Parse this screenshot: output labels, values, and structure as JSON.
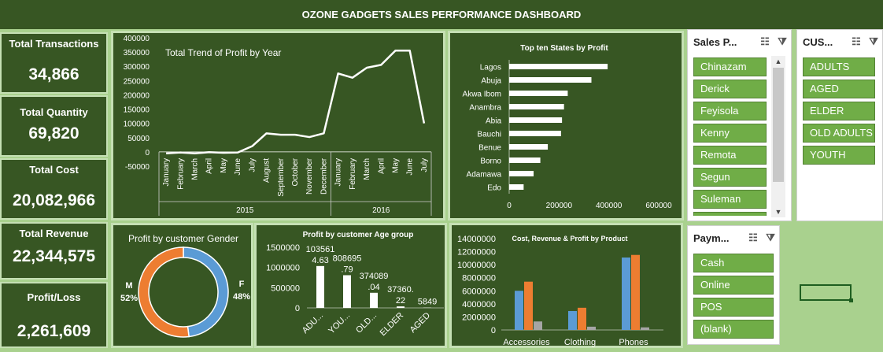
{
  "title": "OZONE GADGETS SALES PERFORMANCE DASHBOARD",
  "kpis": {
    "transactions": {
      "label": "Total Transactions",
      "value": "34,866"
    },
    "quantity": {
      "label": "Total Quantity",
      "value": "69,820"
    },
    "cost": {
      "label": "Total Cost",
      "value": "20,082,966"
    },
    "revenue": {
      "label": "Total Revenue",
      "value": "22,344,575"
    },
    "profit": {
      "label": "Profit/Loss",
      "value": "2,261,609"
    }
  },
  "slicers": {
    "sales_person": {
      "title": "Sales P...",
      "items": [
        "Chinazam",
        "Derick",
        "Feyisola",
        "Kenny",
        "Remota",
        "Segun",
        "Suleman"
      ]
    },
    "customer": {
      "title": "CUS...",
      "items": [
        "ADULTS",
        "AGED",
        "ELDER",
        "OLD ADULTS",
        "YOUTH"
      ]
    },
    "payment": {
      "title": "Paym...",
      "items": [
        "Cash",
        "Online",
        "POS",
        "(blank)"
      ]
    },
    "icons": {
      "multiselect": "multi-select-icon",
      "clear": "clear-filter-icon",
      "scroll_up": "scroll-up-icon",
      "scroll_down": "scroll-down-icon"
    }
  },
  "colors": {
    "dark_green": "#375623",
    "light_green": "#a9d18e",
    "chip_green": "#70ad47",
    "blue": "#5b9bd5",
    "orange": "#ed7d31",
    "gray": "#a5a5a5"
  },
  "chart_data": [
    {
      "id": "trend",
      "type": "line",
      "title": "Total Trend of Profit by Year",
      "years": [
        "2015",
        "2016"
      ],
      "categories": [
        "January",
        "February",
        "March",
        "April",
        "May",
        "June",
        "July",
        "August",
        "September",
        "October",
        "November",
        "December",
        "January",
        "February",
        "March",
        "April",
        "May",
        "June",
        "July"
      ],
      "year_of_category": [
        0,
        0,
        0,
        0,
        0,
        0,
        0,
        0,
        0,
        0,
        0,
        0,
        1,
        1,
        1,
        1,
        1,
        1,
        1
      ],
      "values": [
        -5000,
        -2000,
        -5000,
        -1000,
        -3000,
        -2000,
        20000,
        65000,
        60000,
        60000,
        52000,
        65000,
        275000,
        260000,
        295000,
        305000,
        355000,
        355000,
        100000
      ],
      "yticks": [
        "400000",
        "350000",
        "300000",
        "250000",
        "200000",
        "150000",
        "100000",
        "50000",
        "0",
        "-50000"
      ],
      "ylim": [
        -50000,
        400000
      ]
    },
    {
      "id": "states",
      "type": "bar",
      "title": "Top ten States by Profit",
      "categories": [
        "Lagos",
        "Abuja",
        "Akwa Ibom",
        "Anambra",
        "Abia",
        "Bauchi",
        "Benue",
        "Borno",
        "Adamawa",
        "Edo"
      ],
      "values": [
        395000,
        330000,
        235000,
        220000,
        212000,
        208000,
        155000,
        125000,
        98000,
        58000
      ],
      "xticks": [
        "0",
        "200000",
        "400000",
        "600000"
      ],
      "xlim": [
        0,
        600000
      ]
    },
    {
      "id": "gender",
      "type": "pie",
      "title": "Profit by customer Gender",
      "series": [
        {
          "name": "F",
          "value": 48,
          "label": "48%"
        },
        {
          "name": "M",
          "value": 52,
          "label": "52%"
        }
      ]
    },
    {
      "id": "age",
      "type": "bar",
      "title": "Profit by customer Age group",
      "categories": [
        "ADU...",
        "YOU...",
        "OLD...",
        "ELDER",
        "AGED"
      ],
      "values": [
        1035614.63,
        808695.79,
        374089.04,
        37360.22,
        5849
      ],
      "data_labels": [
        [
          "103561",
          "4.63"
        ],
        [
          "808695",
          ".79"
        ],
        [
          "374089",
          ".04"
        ],
        [
          "37360.",
          "22"
        ],
        [
          "5849"
        ]
      ],
      "yticks": [
        "1500000",
        "1000000",
        "500000",
        "0"
      ],
      "ylim": [
        0,
        1500000
      ]
    },
    {
      "id": "product",
      "type": "bar",
      "title": "Cost, Revenue & Profit by Product",
      "categories": [
        "Accessories",
        "Clothing",
        "Phones"
      ],
      "series": [
        {
          "values": [
            6000000,
            2900000,
            11100000
          ]
        },
        {
          "values": [
            7400000,
            3400000,
            11500000
          ]
        },
        {
          "values": [
            1300000,
            500000,
            400000
          ]
        }
      ],
      "yticks": [
        "14000000",
        "12000000",
        "10000000",
        "8000000",
        "6000000",
        "4000000",
        "2000000",
        "0"
      ],
      "ylim": [
        0,
        14000000
      ]
    }
  ]
}
